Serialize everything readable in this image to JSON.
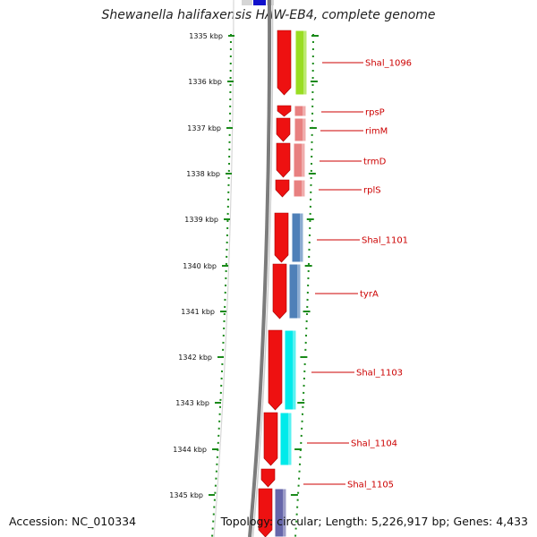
{
  "title": "Shewanella halifaxensis HAW-EB4, complete genome",
  "footer": {
    "accession": "Accession: NC_010334",
    "topology": "Topology: circular; Length: 5,226,917 bp; Genes: 4,433"
  },
  "scale": {
    "ticks": [
      "1335 kbp",
      "1336 kbp",
      "1337 kbp",
      "1338 kbp",
      "1339 kbp",
      "1340 kbp",
      "1341 kbp",
      "1342 kbp",
      "1343 kbp",
      "1344 kbp",
      "1345 kbp"
    ]
  },
  "genes": [
    {
      "label": "Shal_1096",
      "color": "#99dd22"
    },
    {
      "label": "rpsP",
      "color": "#e88080"
    },
    {
      "label": "rimM",
      "color": "#e88080"
    },
    {
      "label": "trmD",
      "color": "#e88080"
    },
    {
      "label": "rplS",
      "color": "#e88080"
    },
    {
      "label": "Shal_1101",
      "color": "#4f80b8"
    },
    {
      "label": "tyrA",
      "color": "#4f80b8"
    },
    {
      "label": "Shal_1103",
      "color": "#00eaea"
    },
    {
      "label": "Shal_1104",
      "color": "#00eaea"
    },
    {
      "label": "Shal_1105",
      "color": "#ffffff"
    },
    {
      "label": "",
      "color": "#6666aa"
    }
  ],
  "colors": {
    "strand_arrow": "#ee1111",
    "backbone": "#888888",
    "tick": "#1a8a1a",
    "label": "#cc0000",
    "top_marker": "#1111cc"
  }
}
